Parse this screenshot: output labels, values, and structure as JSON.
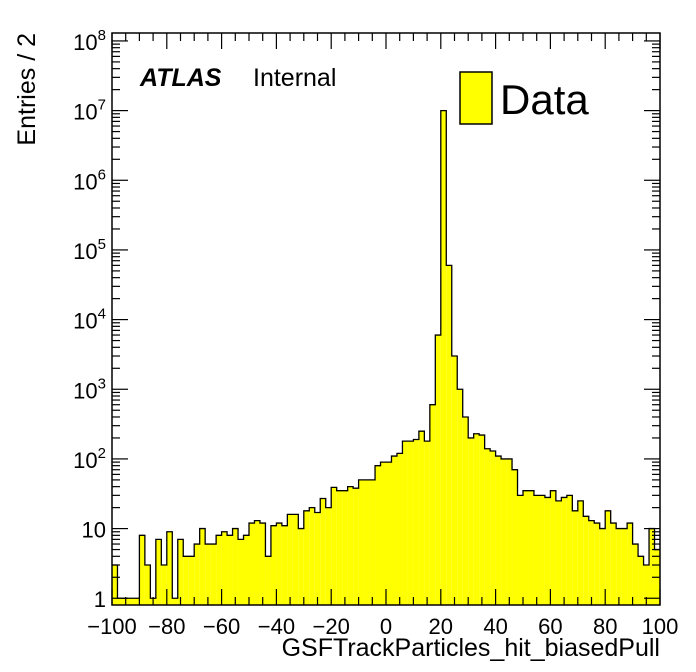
{
  "chart_data": {
    "type": "bar",
    "style": "histogram",
    "xlabel": "GSFTrackParticles_hit_biasedPull",
    "ylabel": "Entries / 2",
    "xlim": [
      -100,
      100
    ],
    "ylim": [
      0.8,
      130000000
    ],
    "y_scale": "log",
    "grid": false,
    "legend_position": "top-right",
    "fill_color": "#ffff00",
    "line_color": "#000000",
    "x_tick_labels": [
      "−100",
      "−80",
      "−60",
      "−40",
      "−20",
      "0",
      "20",
      "40",
      "60",
      "80",
      "100"
    ],
    "y_tick_labels": [
      {
        "mantissa": "1",
        "exponent": ""
      },
      {
        "mantissa": "10",
        "exponent": ""
      },
      {
        "mantissa": "10",
        "exponent": "2"
      },
      {
        "mantissa": "10",
        "exponent": "3"
      },
      {
        "mantissa": "10",
        "exponent": "4"
      },
      {
        "mantissa": "10",
        "exponent": "5"
      },
      {
        "mantissa": "10",
        "exponent": "6"
      },
      {
        "mantissa": "10",
        "exponent": "7"
      },
      {
        "mantissa": "10",
        "exponent": "8"
      }
    ],
    "series": [
      {
        "name": "Data",
        "bin_width": 2,
        "bin_edges_start": -100,
        "values": [
          3,
          1,
          1,
          1,
          1,
          8,
          3,
          1,
          7,
          3,
          9,
          1,
          7,
          4,
          4,
          6,
          10,
          6,
          6,
          8,
          9,
          8,
          10,
          7,
          8,
          12,
          13,
          12,
          4,
          11,
          12,
          11,
          16,
          16,
          10,
          18,
          20,
          17,
          27,
          20,
          39,
          35,
          35,
          40,
          38,
          50,
          50,
          50,
          80,
          90,
          90,
          110,
          120,
          180,
          180,
          190,
          250,
          180,
          600,
          6000,
          10000000,
          60000,
          3000,
          1000,
          400,
          200,
          230,
          220,
          140,
          130,
          110,
          100,
          100,
          70,
          30,
          35,
          35,
          30,
          30,
          28,
          35,
          25,
          28,
          30,
          18,
          25,
          15,
          13,
          12,
          10,
          18,
          12,
          10,
          10,
          12,
          6,
          4,
          3,
          10,
          5
        ]
      }
    ],
    "annotations": {
      "atlas": "ATLAS",
      "status": "Internal"
    },
    "legend_entries": [
      "Data"
    ]
  }
}
